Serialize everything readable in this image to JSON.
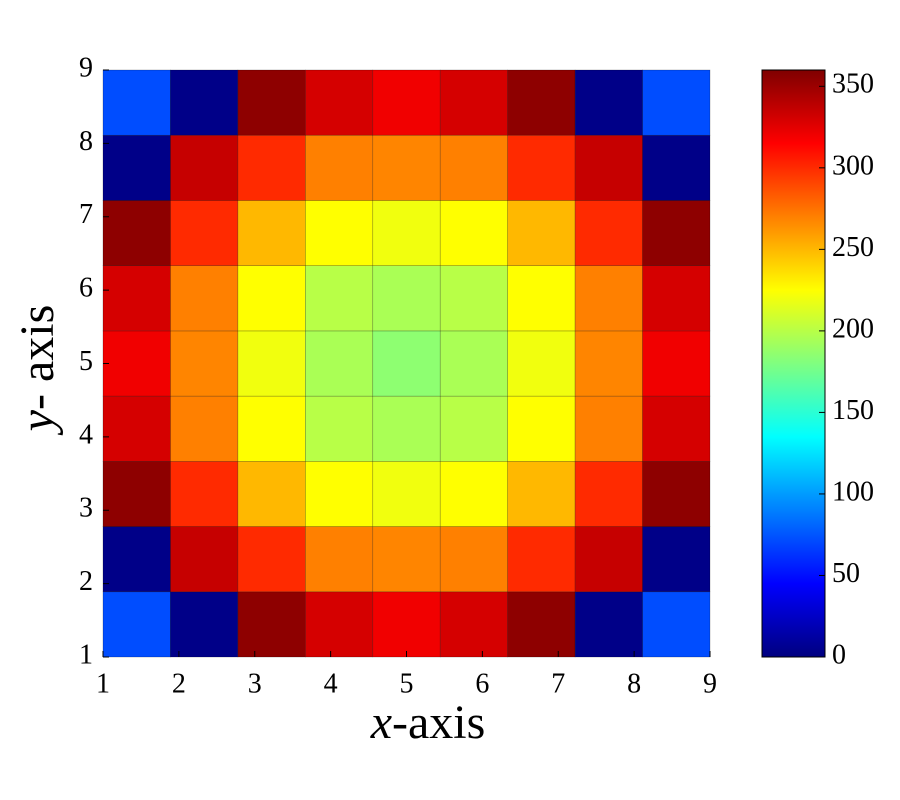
{
  "chart_data": {
    "type": "heatmap",
    "colormap": "jet",
    "clim": [
      0,
      360
    ],
    "xlabel": "x-axis",
    "ylabel": "y- axis",
    "xlim": [
      1,
      9
    ],
    "ylim": [
      1,
      9
    ],
    "xticks": [
      1,
      2,
      3,
      4,
      5,
      6,
      7,
      8,
      9
    ],
    "yticks": [
      1,
      2,
      3,
      4,
      5,
      6,
      7,
      8,
      9
    ],
    "colorbar_ticks": [
      0,
      50,
      100,
      150,
      200,
      250,
      300,
      350
    ],
    "z": [
      [
        72,
        3,
        355,
        330,
        320,
        330,
        355,
        3,
        72
      ],
      [
        3,
        335,
        300,
        270,
        268,
        270,
        300,
        335,
        3
      ],
      [
        355,
        300,
        250,
        225,
        220,
        225,
        250,
        300,
        355
      ],
      [
        330,
        270,
        225,
        200,
        195,
        200,
        225,
        270,
        330
      ],
      [
        320,
        268,
        220,
        195,
        185,
        195,
        220,
        268,
        320
      ],
      [
        330,
        270,
        225,
        200,
        195,
        200,
        225,
        270,
        330
      ],
      [
        355,
        300,
        250,
        225,
        220,
        225,
        250,
        300,
        355
      ],
      [
        3,
        335,
        300,
        270,
        268,
        270,
        300,
        335,
        3
      ],
      [
        72,
        3,
        355,
        330,
        320,
        330,
        355,
        3,
        72
      ]
    ]
  }
}
